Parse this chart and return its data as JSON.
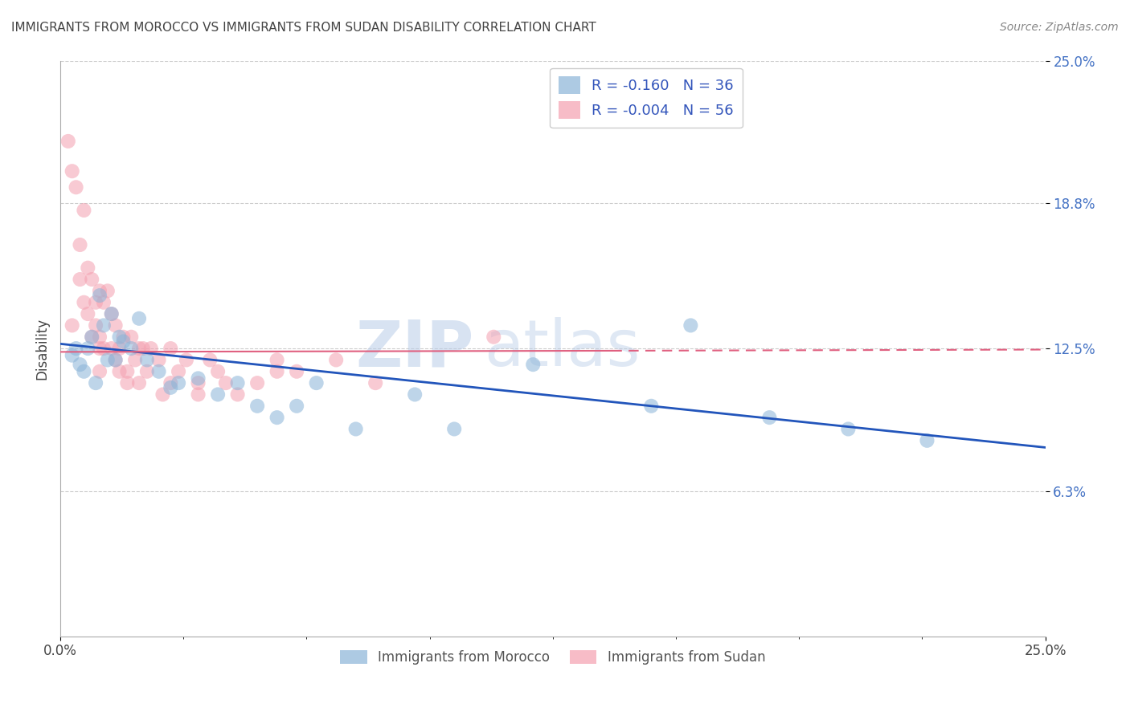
{
  "title": "IMMIGRANTS FROM MOROCCO VS IMMIGRANTS FROM SUDAN DISABILITY CORRELATION CHART",
  "source_text": "Source: ZipAtlas.com",
  "ylabel": "Disability",
  "xlim": [
    0,
    25
  ],
  "ylim": [
    0,
    25
  ],
  "ytick_values": [
    6.3,
    12.5,
    18.8,
    25.0
  ],
  "watermark_part1": "ZIP",
  "watermark_part2": "atlas",
  "morocco_color": "#8ab4d8",
  "sudan_color": "#f4a0b0",
  "morocco_line_color": "#2255bb",
  "sudan_line_color": "#e06080",
  "background_color": "#ffffff",
  "grid_color": "#cccccc",
  "morocco_R": -0.16,
  "morocco_N": 36,
  "sudan_R": -0.004,
  "sudan_N": 56,
  "morocco_x": [
    0.3,
    0.5,
    0.7,
    0.8,
    1.0,
    1.1,
    1.2,
    1.3,
    1.5,
    1.6,
    1.8,
    2.0,
    2.2,
    2.5,
    2.8,
    3.0,
    3.5,
    4.0,
    4.5,
    5.0,
    5.5,
    6.0,
    6.5,
    7.5,
    9.0,
    10.0,
    12.0,
    15.0,
    16.0,
    18.0,
    20.0,
    22.0,
    0.4,
    0.6,
    0.9,
    1.4
  ],
  "morocco_y": [
    12.2,
    11.8,
    12.5,
    13.0,
    14.8,
    13.5,
    12.0,
    14.0,
    13.0,
    12.8,
    12.5,
    13.8,
    12.0,
    11.5,
    10.8,
    11.0,
    11.2,
    10.5,
    11.0,
    10.0,
    9.5,
    10.0,
    11.0,
    9.0,
    10.5,
    9.0,
    11.8,
    10.0,
    13.5,
    9.5,
    9.0,
    8.5,
    12.5,
    11.5,
    11.0,
    12.0
  ],
  "sudan_x": [
    0.2,
    0.3,
    0.4,
    0.5,
    0.5,
    0.6,
    0.6,
    0.7,
    0.7,
    0.8,
    0.8,
    0.9,
    0.9,
    1.0,
    1.0,
    1.0,
    1.1,
    1.1,
    1.2,
    1.3,
    1.3,
    1.4,
    1.4,
    1.5,
    1.5,
    1.6,
    1.7,
    1.8,
    1.9,
    2.0,
    2.0,
    2.1,
    2.3,
    2.5,
    2.8,
    3.0,
    3.2,
    3.5,
    3.8,
    4.0,
    4.5,
    5.0,
    5.5,
    6.0,
    7.0,
    8.0,
    2.2,
    2.6,
    1.7,
    0.3,
    1.0,
    5.5,
    11.0,
    3.5,
    4.2,
    2.8
  ],
  "sudan_y": [
    21.5,
    20.2,
    19.5,
    17.0,
    15.5,
    18.5,
    14.5,
    16.0,
    14.0,
    15.5,
    13.0,
    14.5,
    13.5,
    15.0,
    13.0,
    12.5,
    14.5,
    12.5,
    15.0,
    14.0,
    12.5,
    13.5,
    12.0,
    12.5,
    11.5,
    13.0,
    11.5,
    13.0,
    12.0,
    12.5,
    11.0,
    12.5,
    12.5,
    12.0,
    11.0,
    11.5,
    12.0,
    11.0,
    12.0,
    11.5,
    10.5,
    11.0,
    12.0,
    11.5,
    12.0,
    11.0,
    11.5,
    10.5,
    11.0,
    13.5,
    11.5,
    11.5,
    13.0,
    10.5,
    11.0,
    12.5
  ],
  "morocco_trendline_x0": 0,
  "morocco_trendline_y0": 12.7,
  "morocco_trendline_x1": 25,
  "morocco_trendline_y1": 8.2,
  "sudan_trendline_x0": 0,
  "sudan_trendline_y0": 12.35,
  "sudan_trendline_x1": 14,
  "sudan_trendline_y1": 12.4
}
